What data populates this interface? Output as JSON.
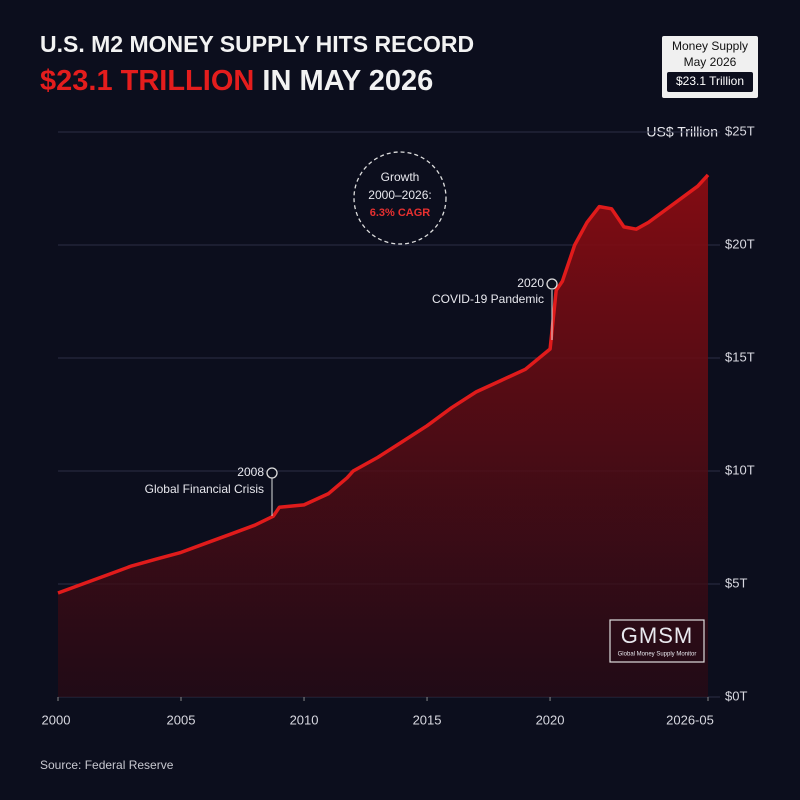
{
  "chart_data": {
    "type": "area-line",
    "title": "U.S. M2 MONEY SUPPLY HITS RECORD",
    "subtitle_highlight": "$23.1 TRILLION",
    "subtitle_rest": "IN MAY 2026",
    "badge": [
      "Money Supply",
      "May 2026",
      "$23.1 Trillion"
    ],
    "y_axis_label": "US$ Trillion",
    "annotations": {
      "gfc": [
        "2008",
        "Global Financial Crisis"
      ],
      "covid": [
        "2020",
        "COVID-19 Pandemic"
      ],
      "growth": [
        "Growth",
        "2000–2026:",
        "6.3% CAGR"
      ]
    },
    "logo": [
      "GMSM",
      "Global Money Supply Monitor"
    ],
    "source": "Source: Federal Reserve",
    "x": [
      2000,
      2001,
      2002,
      2003,
      2004,
      2005,
      2006,
      2007,
      2008,
      2008.75,
      2009,
      2010,
      2011,
      2011.75,
      2012,
      2013,
      2014,
      2015,
      2016,
      2017,
      2018,
      2019,
      2020,
      2020.25,
      2020.5,
      2021,
      2021.5,
      2022,
      2022.5,
      2023,
      2023.5,
      2024,
      2025,
      2026,
      2026.42
    ],
    "series": [
      {
        "name": "M2",
        "color": "#e01b1b",
        "values": [
          4.6,
          5.0,
          5.4,
          5.8,
          6.1,
          6.4,
          6.8,
          7.2,
          7.6,
          8.0,
          8.4,
          8.5,
          9.0,
          9.7,
          10.0,
          10.6,
          11.3,
          12.0,
          12.8,
          13.5,
          14.0,
          14.5,
          15.4,
          18.0,
          18.4,
          20.0,
          21.0,
          21.7,
          21.6,
          20.8,
          20.7,
          21.0,
          21.8,
          22.6,
          23.1
        ]
      }
    ],
    "xlim": [
      2000,
      2026.42
    ],
    "xticks": [
      2000,
      2005,
      2010,
      2015,
      2020,
      {
        "value": 2026.42,
        "label": "2026-05"
      }
    ],
    "ylim": [
      0,
      25
    ],
    "yticks": [
      {
        "value": 0,
        "label": "$0T"
      },
      {
        "value": 5,
        "label": "$5T"
      },
      {
        "value": 10,
        "label": "$10T"
      },
      {
        "value": 15,
        "label": "$15T"
      },
      {
        "value": 20,
        "label": "$20T"
      },
      {
        "value": 25,
        "label": "$25T"
      }
    ],
    "grid": true
  }
}
